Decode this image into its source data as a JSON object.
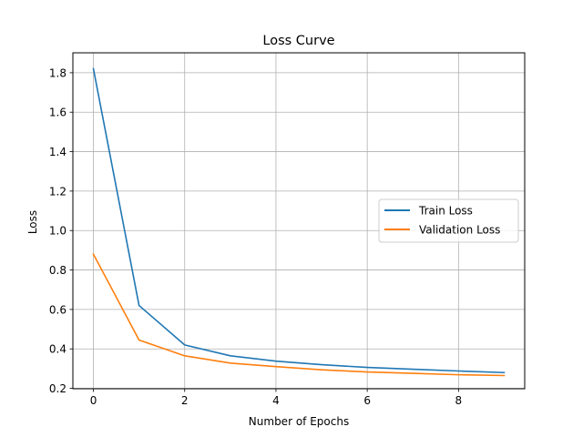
{
  "chart_data": {
    "type": "line",
    "title": "Loss Curve",
    "xlabel": "Number of Epochs",
    "ylabel": "Loss",
    "x": [
      0,
      1,
      2,
      3,
      4,
      5,
      6,
      7,
      8,
      9
    ],
    "series": [
      {
        "name": "Train Loss",
        "color": "#1f77b4",
        "values": [
          1.82,
          0.62,
          0.42,
          0.365,
          0.338,
          0.32,
          0.306,
          0.297,
          0.288,
          0.28
        ]
      },
      {
        "name": "Validation Loss",
        "color": "#ff7f0e",
        "values": [
          0.88,
          0.445,
          0.365,
          0.328,
          0.31,
          0.294,
          0.283,
          0.276,
          0.269,
          0.265
        ]
      }
    ],
    "xlim": [
      -0.45,
      9.45
    ],
    "ylim": [
      0.198,
      1.901
    ],
    "xticks": [
      0,
      2,
      4,
      6,
      8
    ],
    "xtick_labels": [
      "0",
      "2",
      "4",
      "6",
      "8"
    ],
    "yticks": [
      0.2,
      0.4,
      0.6,
      0.8,
      1.0,
      1.2,
      1.4,
      1.6,
      1.8
    ],
    "ytick_labels": [
      "0.2",
      "0.4",
      "0.6",
      "0.8",
      "1.0",
      "1.2",
      "1.4",
      "1.6",
      "1.8"
    ],
    "grid": true,
    "legend_position": "center-right"
  }
}
